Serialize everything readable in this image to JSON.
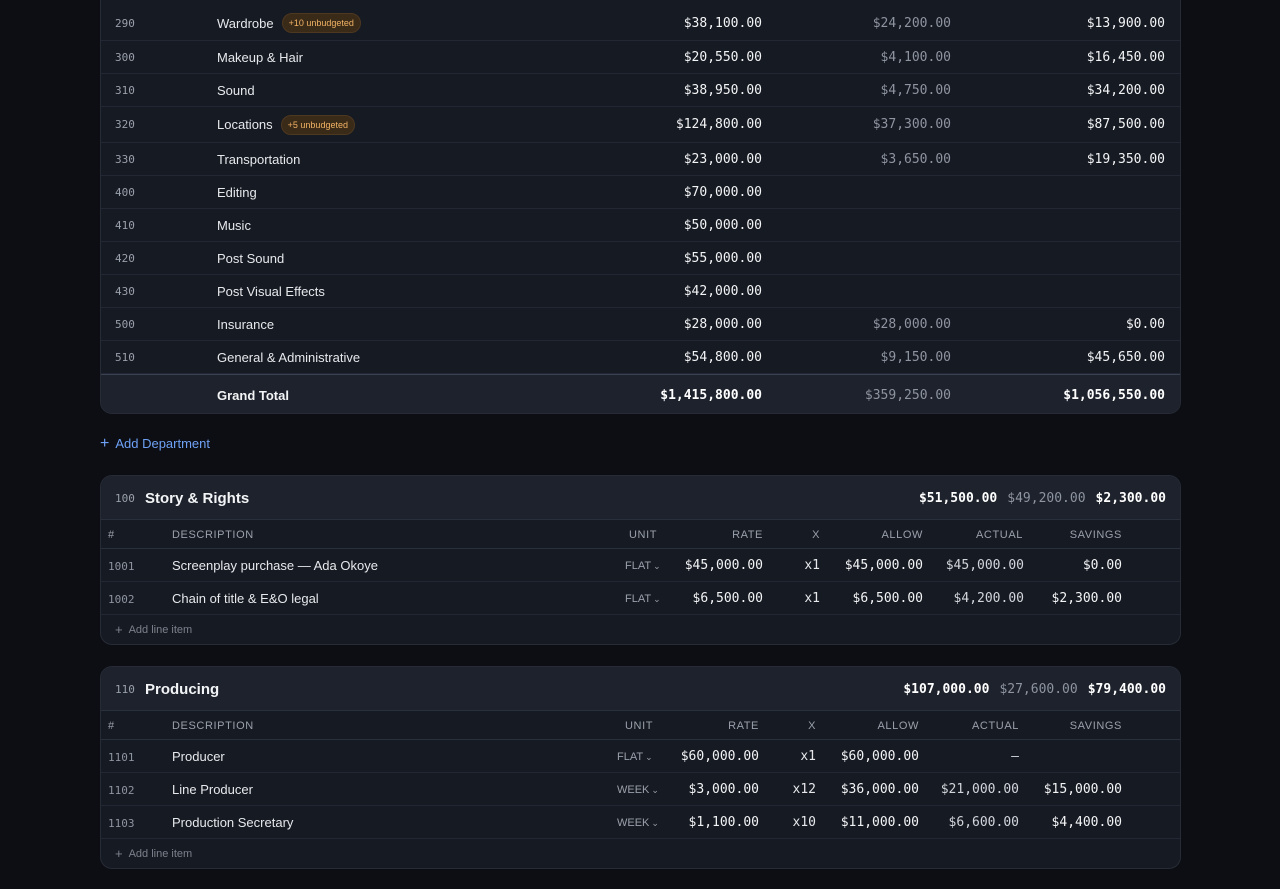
{
  "summary": {
    "rows": [
      {
        "code": "290",
        "name": "Wardrobe",
        "badge": "+10 unbudgeted",
        "budget": "$38,100.00",
        "actual": "$24,200.00",
        "savings": "$13,900.00"
      },
      {
        "code": "300",
        "name": "Makeup & Hair",
        "badge": "",
        "budget": "$20,550.00",
        "actual": "$4,100.00",
        "savings": "$16,450.00"
      },
      {
        "code": "310",
        "name": "Sound",
        "badge": "",
        "budget": "$38,950.00",
        "actual": "$4,750.00",
        "savings": "$34,200.00"
      },
      {
        "code": "320",
        "name": "Locations",
        "badge": "+5 unbudgeted",
        "budget": "$124,800.00",
        "actual": "$37,300.00",
        "savings": "$87,500.00"
      },
      {
        "code": "330",
        "name": "Transportation",
        "badge": "",
        "budget": "$23,000.00",
        "actual": "$3,650.00",
        "savings": "$19,350.00"
      },
      {
        "code": "400",
        "name": "Editing",
        "badge": "",
        "budget": "$70,000.00",
        "actual": "",
        "savings": ""
      },
      {
        "code": "410",
        "name": "Music",
        "badge": "",
        "budget": "$50,000.00",
        "actual": "",
        "savings": ""
      },
      {
        "code": "420",
        "name": "Post Sound",
        "badge": "",
        "budget": "$55,000.00",
        "actual": "",
        "savings": ""
      },
      {
        "code": "430",
        "name": "Post Visual Effects",
        "badge": "",
        "budget": "$42,000.00",
        "actual": "",
        "savings": ""
      },
      {
        "code": "500",
        "name": "Insurance",
        "badge": "",
        "budget": "$28,000.00",
        "actual": "$28,000.00",
        "savings": "$0.00"
      },
      {
        "code": "510",
        "name": "General & Administrative",
        "badge": "",
        "budget": "$54,800.00",
        "actual": "$9,150.00",
        "savings": "$45,650.00"
      }
    ],
    "grand_total": {
      "label": "Grand Total",
      "budget": "$1,415,800.00",
      "actual": "$359,250.00",
      "savings": "$1,056,550.00"
    }
  },
  "add_department_label": "Add Department",
  "columns": {
    "num": "#",
    "description": "DESCRIPTION",
    "unit": "UNIT",
    "rate": "RATE",
    "x": "X",
    "allow": "ALLOW",
    "actual": "ACTUAL",
    "savings": "SAVINGS"
  },
  "add_line_label": "Add line item",
  "departments": [
    {
      "code": "100",
      "name": "Story & Rights",
      "budget": "$51,500.00",
      "actual": "$49,200.00",
      "savings": "$2,300.00",
      "lines": [
        {
          "code": "1001",
          "description": "Screenplay purchase — Ada Okoye",
          "unit": "FLAT",
          "rate": "$45,000.00",
          "x": "x1",
          "allow": "$45,000.00",
          "actual": "$45,000.00",
          "savings": "$0.00"
        },
        {
          "code": "1002",
          "description": "Chain of title & E&O legal",
          "unit": "FLAT",
          "rate": "$6,500.00",
          "x": "x1",
          "allow": "$6,500.00",
          "actual": "$4,200.00",
          "savings": "$2,300.00"
        }
      ]
    },
    {
      "code": "110",
      "name": "Producing",
      "budget": "$107,000.00",
      "actual": "$27,600.00",
      "savings": "$79,400.00",
      "lines": [
        {
          "code": "1101",
          "description": "Producer",
          "unit": "FLAT",
          "rate": "$60,000.00",
          "x": "x1",
          "allow": "$60,000.00",
          "actual": "—",
          "savings": ""
        },
        {
          "code": "1102",
          "description": "Line Producer",
          "unit": "WEEK",
          "rate": "$3,000.00",
          "x": "x12",
          "allow": "$36,000.00",
          "actual": "$21,000.00",
          "savings": "$15,000.00"
        },
        {
          "code": "1103",
          "description": "Production Secretary",
          "unit": "WEEK",
          "rate": "$1,100.00",
          "x": "x10",
          "allow": "$11,000.00",
          "actual": "$6,600.00",
          "savings": "$4,400.00"
        }
      ]
    }
  ]
}
